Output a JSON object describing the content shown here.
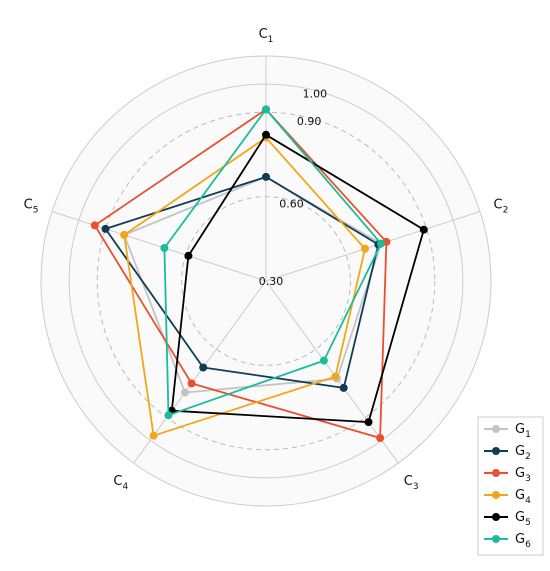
{
  "chart_data": {
    "type": "radar",
    "axes": [
      {
        "label": "C",
        "sub": "1"
      },
      {
        "label": "C",
        "sub": "2"
      },
      {
        "label": "C",
        "sub": "3"
      },
      {
        "label": "C",
        "sub": "4"
      },
      {
        "label": "C",
        "sub": "5"
      }
    ],
    "r_range": [
      0.3,
      1.1
    ],
    "ticks": [
      {
        "value": 0.3,
        "label": "0.30",
        "style": "solid"
      },
      {
        "value": 0.6,
        "label": "0.60",
        "style": "dashed"
      },
      {
        "value": 0.9,
        "label": "0.90",
        "style": "dashed"
      },
      {
        "value": 1.0,
        "label": "1.00",
        "style": "solid"
      }
    ],
    "grid": true,
    "legend": "bottom-right",
    "series": [
      {
        "name": "G",
        "sub": "1",
        "color": "#c4c4c4",
        "values": [
          0.67,
          0.73,
          0.73,
          0.79,
          0.83
        ]
      },
      {
        "name": "G",
        "sub": "2",
        "color": "#0e3c55",
        "values": [
          0.67,
          0.72,
          0.77,
          0.68,
          0.9
        ]
      },
      {
        "name": "G",
        "sub": "3",
        "color": "#e8502e",
        "values": [
          0.91,
          0.75,
          0.99,
          0.75,
          0.94
        ]
      },
      {
        "name": "G",
        "sub": "4",
        "color": "#f2a71b",
        "values": [
          0.81,
          0.67,
          0.72,
          0.98,
          0.83
        ]
      },
      {
        "name": "G",
        "sub": "5",
        "color": "#000000",
        "values": [
          0.82,
          0.89,
          0.92,
          0.87,
          0.59
        ]
      },
      {
        "name": "G",
        "sub": "6",
        "color": "#1abc9c",
        "values": [
          0.91,
          0.73,
          0.65,
          0.89,
          0.68
        ]
      }
    ]
  }
}
